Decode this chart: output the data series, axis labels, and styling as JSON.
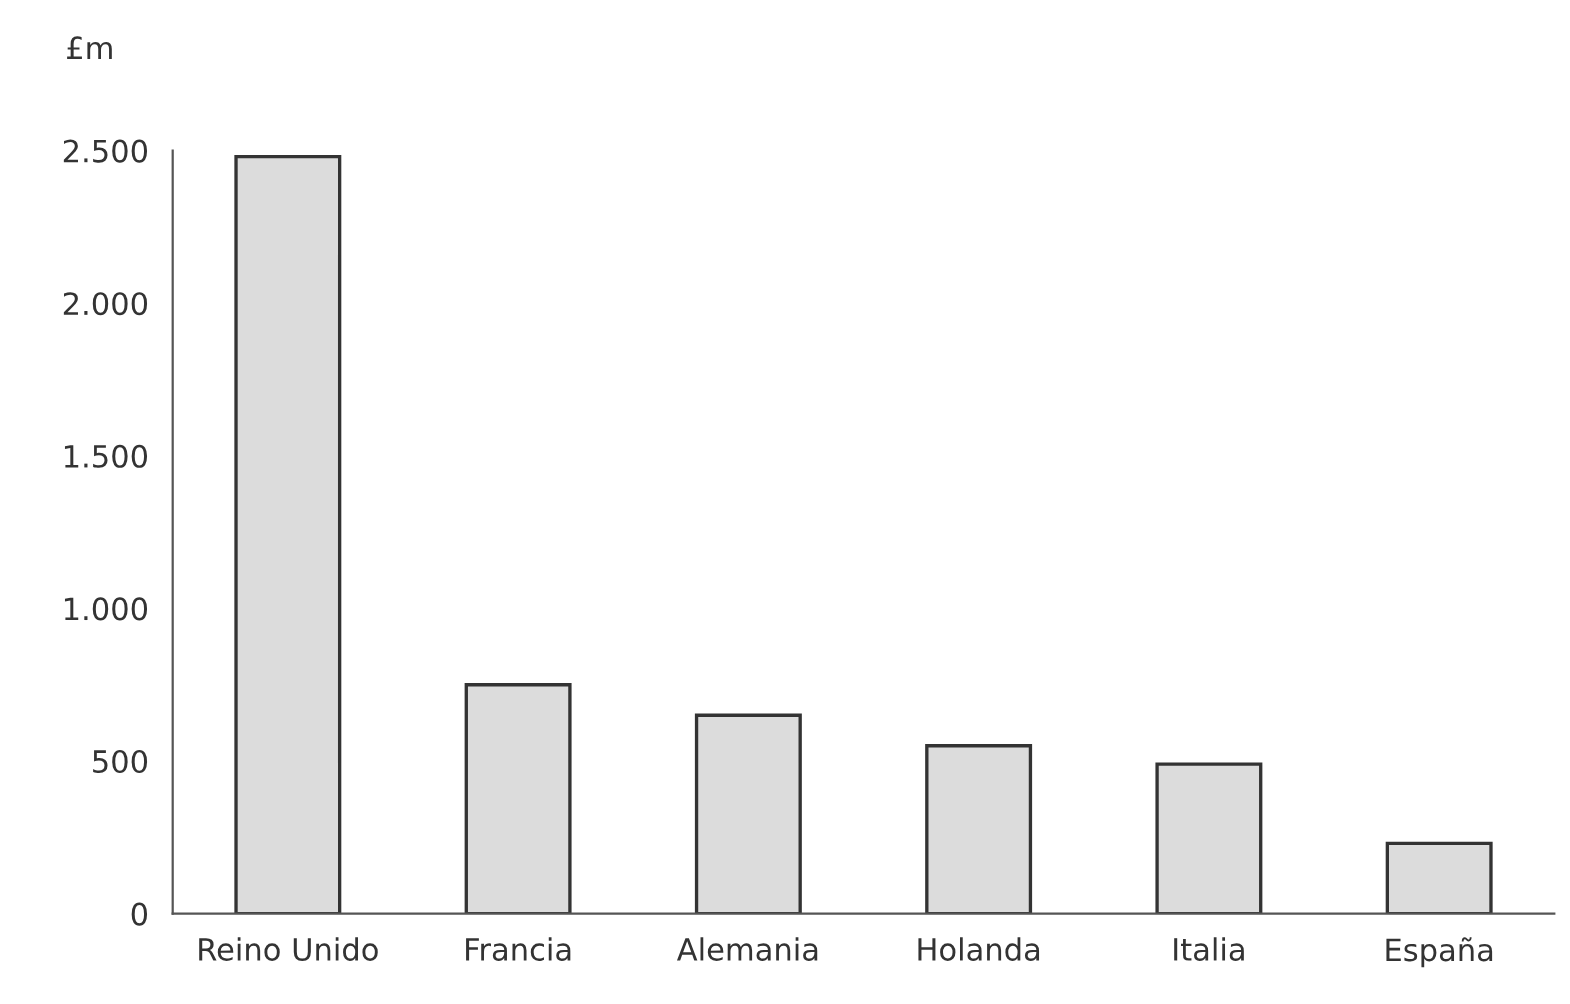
{
  "chart_data": {
    "type": "bar",
    "ylabel": "£m",
    "categories": [
      "Reino Unido",
      "Francia",
      "Alemania",
      "Holanda",
      "Italia",
      "España"
    ],
    "values": [
      2480,
      750,
      650,
      550,
      490,
      230
    ],
    "color": "#dcdcdc",
    "ylim": [
      0,
      2500
    ],
    "yticks": [
      0,
      {
        "value": 500,
        "label": "500"
      },
      {
        "value": 1000,
        "label": "1.000"
      },
      {
        "value": 1500,
        "label": "1.500"
      },
      {
        "value": 2000,
        "label": "2.000"
      },
      {
        "value": 2500,
        "label": "2.500"
      }
    ],
    "grid": false,
    "legend": false
  }
}
